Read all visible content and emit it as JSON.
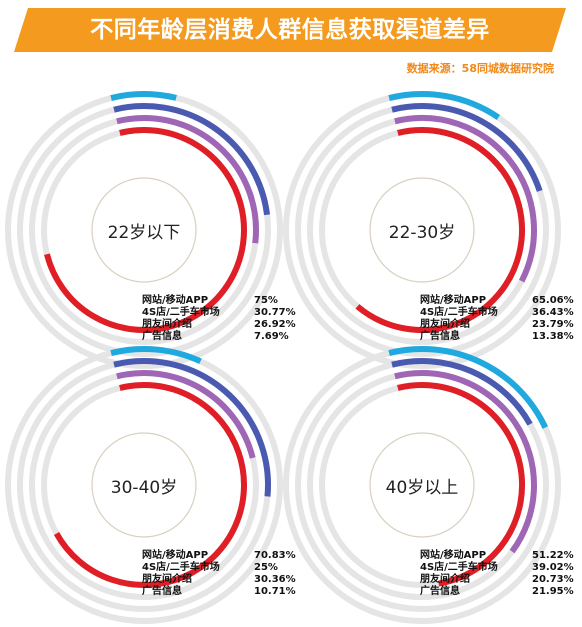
{
  "header": {
    "title": "不同年龄层消费人群信息获取渠道差异",
    "source": "数据来源：58同城数据研究院"
  },
  "colors": {
    "banner": "#f39a1f",
    "track": "#e5e5e5",
    "website_app": "#e01e26",
    "4s_used_market": "#a066b6",
    "friends": "#4a5ab0",
    "ads": "#1fa9de"
  },
  "chart_data": [
    {
      "type": "radial-bar",
      "title": "22岁以下",
      "series": [
        {
          "name": "网站/移动APP",
          "value": 75,
          "label": "75%"
        },
        {
          "name": "4S店/二手车市场",
          "value": 30.77,
          "label": "30.77%"
        },
        {
          "name": "朋友间介绍",
          "value": 26.92,
          "label": "26.92%"
        },
        {
          "name": "广告信息",
          "value": 7.69,
          "label": "7.69%"
        }
      ]
    },
    {
      "type": "radial-bar",
      "title": "22-30岁",
      "series": [
        {
          "name": "网站/移动APP",
          "value": 65.06,
          "label": "65.06%"
        },
        {
          "name": "4S店/二手车市场",
          "value": 36.43,
          "label": "36.43%"
        },
        {
          "name": "朋友间介绍",
          "value": 23.79,
          "label": "23.79%"
        },
        {
          "name": "广告信息",
          "value": 13.38,
          "label": "13.38%"
        }
      ]
    },
    {
      "type": "radial-bar",
      "title": "30-40岁",
      "series": [
        {
          "name": "网站/移动APP",
          "value": 70.83,
          "label": "70.83%"
        },
        {
          "name": "4S店/二手车市场",
          "value": 25,
          "label": "25%"
        },
        {
          "name": "朋友间介绍",
          "value": 30.36,
          "label": "30.36%"
        },
        {
          "name": "广告信息",
          "value": 10.71,
          "label": "10.71%"
        }
      ]
    },
    {
      "type": "radial-bar",
      "title": "40岁以上",
      "series": [
        {
          "name": "网站/移动APP",
          "value": 51.22,
          "label": "51.22%"
        },
        {
          "name": "4S店/二手车市场",
          "value": 39.02,
          "label": "39.02%"
        },
        {
          "name": "朋友间介绍",
          "value": 20.73,
          "label": "20.73%"
        },
        {
          "name": "广告信息",
          "value": 21.95,
          "label": "21.95%"
        }
      ]
    }
  ]
}
